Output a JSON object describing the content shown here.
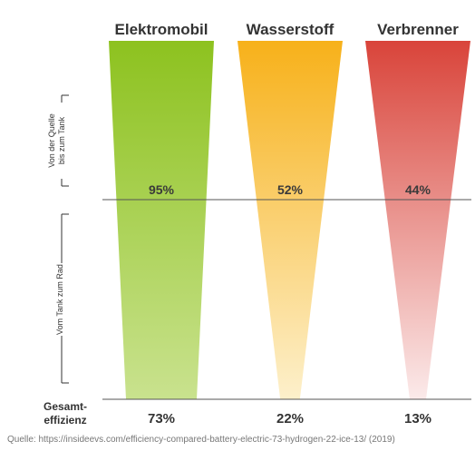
{
  "chart_data": {
    "type": "bar",
    "categories": [
      "Elektromobil",
      "Wasserstoff",
      "Verbrenner"
    ],
    "series": [
      {
        "name": "Von der Quelle bis zum Tank",
        "values": [
          95,
          52,
          44
        ]
      },
      {
        "name": "Vom Tank zum Rad",
        "values": [
          null,
          null,
          null
        ]
      }
    ],
    "total_label": "Gesamt-effizienz",
    "totals": [
      73,
      22,
      13
    ],
    "stage_labels": [
      "Von der Quelle bis zum Tank",
      "Vom Tank zum Rad"
    ],
    "value_labels": [
      "95%",
      "52%",
      "44%"
    ],
    "total_value_labels": [
      "73%",
      "22%",
      "13%"
    ],
    "ylabel_top": "Von der Quelle bis zum Tank",
    "ylabel_bottom": "Vom Tank zum Rad",
    "gesamt_line1": "Gesamt-",
    "gesamt_line2": "effizienz",
    "colors": {
      "Elektromobil": {
        "top": "#8dc21f",
        "bottom": "#c9e28e"
      },
      "Wasserstoff": {
        "top": "#f7b11a",
        "bottom": "#fdf0cb"
      },
      "Verbrenner": {
        "top": "#d9443a",
        "bottom": "#fbeaea"
      }
    },
    "grid": false,
    "legend": "none"
  },
  "source": "Quelle: https://insideevs.com/efficiency-compared-battery-electric-73-hydrogen-22-ice-13/ (2019)"
}
